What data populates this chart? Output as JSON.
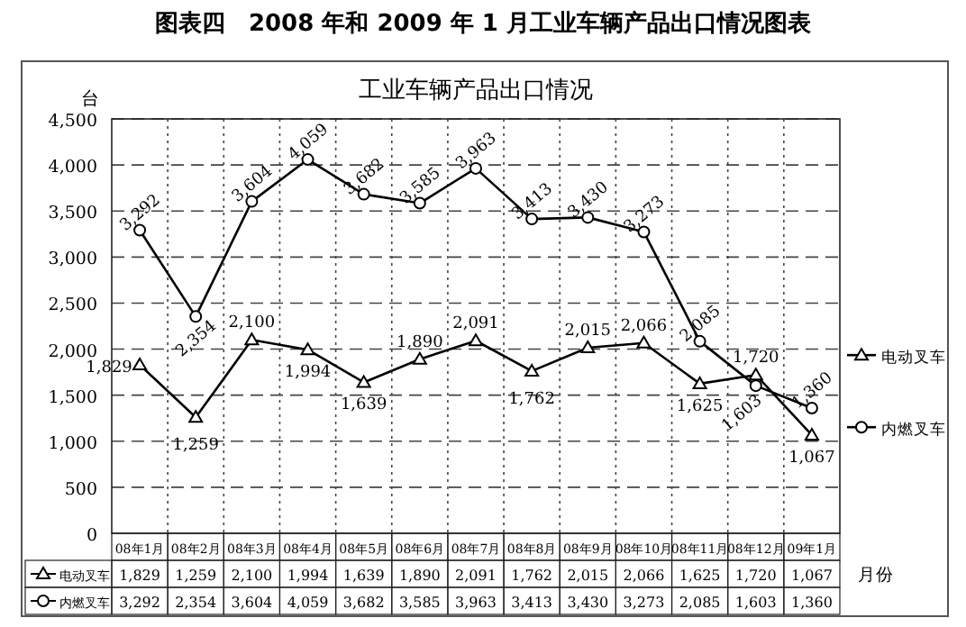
{
  "chart_data": {
    "type": "line",
    "title": "工业车辆产品出口情况",
    "annotations": [
      "图表四　2008 年和 2009 年 1 月工业车辆产品出口情况图表"
    ],
    "ylabel": "台",
    "xlabel": "月份",
    "categories": [
      "08年1月",
      "08年2月",
      "08年3月",
      "08年4月",
      "08年5月",
      "08年6月",
      "08年7月",
      "08年8月",
      "08年9月",
      "08年10月",
      "08年11月",
      "08年12月",
      "09年1月"
    ],
    "series": [
      {
        "name": "电动叉车",
        "color": "#000000",
        "marker": "triangle",
        "values": [
          1829,
          1259,
          2100,
          1994,
          1639,
          1890,
          2091,
          1762,
          2015,
          2066,
          1625,
          1720,
          1067
        ],
        "value_labels": [
          "1,829",
          "1,259",
          "2,100",
          "1,994",
          "1,639",
          "1,890",
          "2,091",
          "1,762",
          "2,015",
          "2,066",
          "1,625",
          "1,720",
          "1,067"
        ]
      },
      {
        "name": "内燃叉车",
        "color": "#000000",
        "marker": "circle",
        "values": [
          3292,
          2354,
          3604,
          4059,
          3682,
          3585,
          3963,
          3413,
          3430,
          3273,
          2085,
          1603,
          1360
        ],
        "value_labels": [
          "3,292",
          "2,354",
          "3,604",
          "4,059",
          "3,682",
          "3,585",
          "3,963",
          "3,413",
          "3,430",
          "3,273",
          "2,085",
          "1,603",
          "1,360"
        ]
      }
    ],
    "ylim": [
      0,
      4500
    ],
    "yticks": [
      {
        "value": 0,
        "label": "0"
      },
      {
        "value": 500,
        "label": "500"
      },
      {
        "value": 1000,
        "label": "1,000"
      },
      {
        "value": 1500,
        "label": "1,500"
      },
      {
        "value": 2000,
        "label": "2,000"
      },
      {
        "value": 2500,
        "label": "2,500"
      },
      {
        "value": 3000,
        "label": "3,000"
      },
      {
        "value": 3500,
        "label": "3,500"
      },
      {
        "value": 4000,
        "label": "4,000"
      },
      {
        "value": 4500,
        "label": "4,500"
      }
    ],
    "grid": true,
    "legend": "right",
    "line_style": "solid"
  }
}
